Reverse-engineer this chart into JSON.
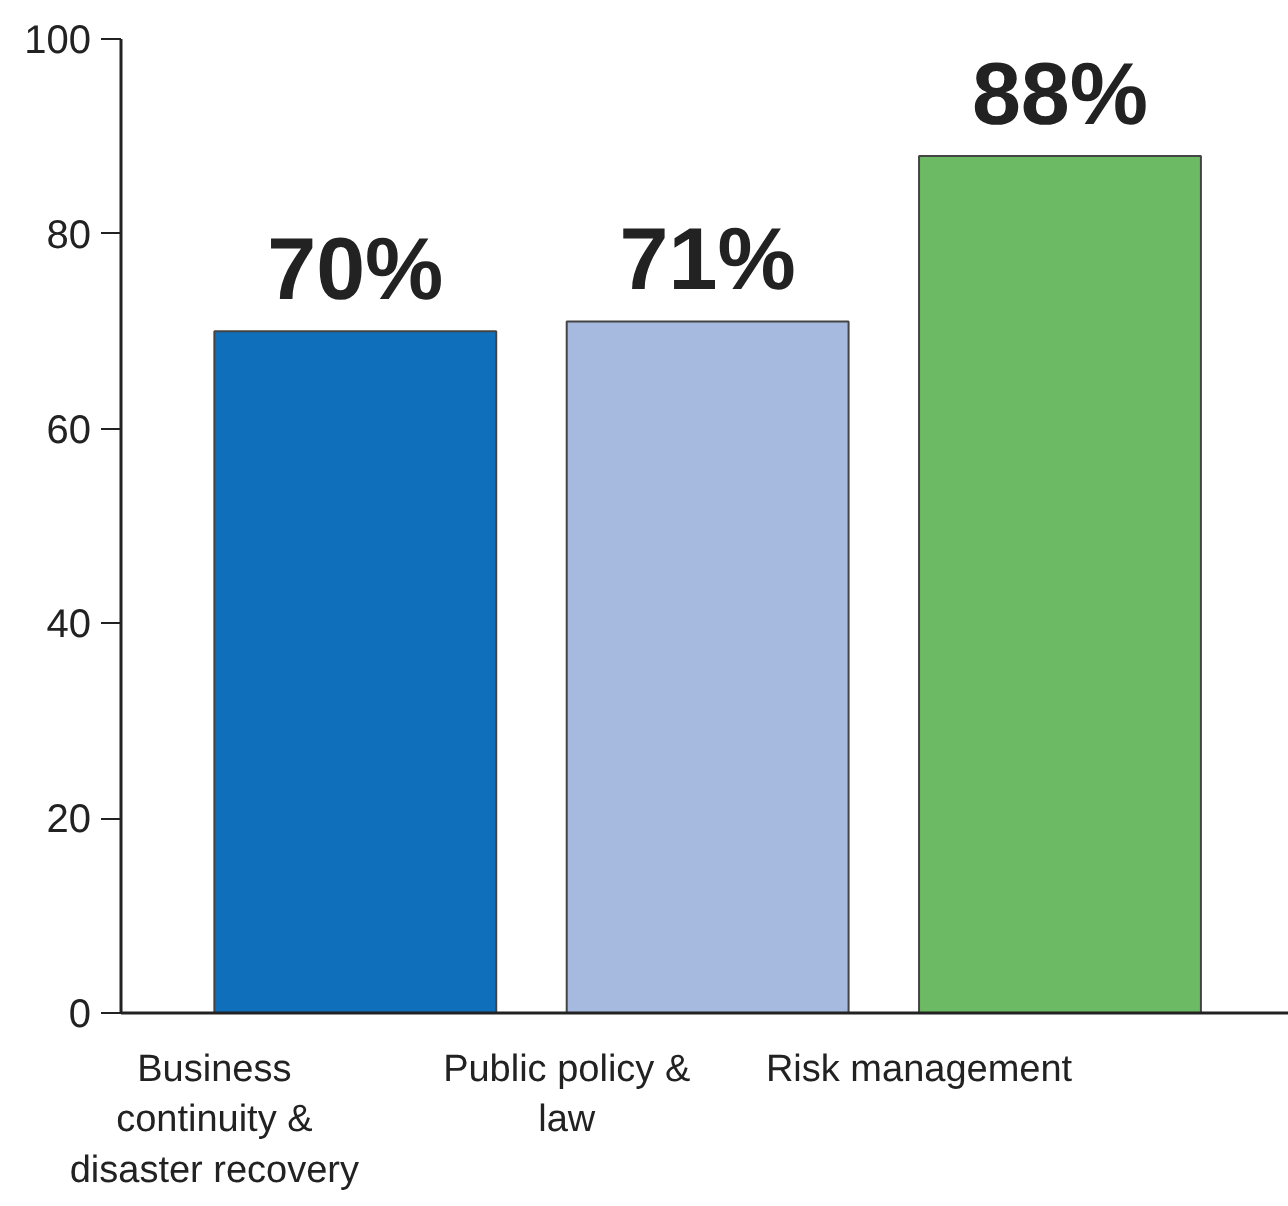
{
  "chart_data": {
    "type": "bar",
    "categories": [
      "Business continuity & disaster recovery",
      "Public policy & law",
      "Risk management"
    ],
    "values": [
      70,
      71,
      88
    ],
    "colors": [
      "#0f6fba",
      "#a6b9df",
      "#6dba64"
    ],
    "value_labels": [
      "70%",
      "71%",
      "88%"
    ],
    "ylim": [
      0,
      100
    ],
    "yticks": [
      0,
      20,
      40,
      60,
      80,
      100
    ],
    "grid": false
  }
}
